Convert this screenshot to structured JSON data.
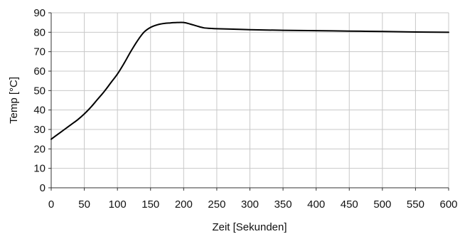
{
  "chart_data": {
    "type": "line",
    "title": "",
    "xlabel": "Zeit [Sekunden]",
    "ylabel": "Temp [°C]",
    "xlim": [
      0,
      600
    ],
    "ylim": [
      0,
      90
    ],
    "x_ticks": [
      "0",
      "50",
      "100",
      "150",
      "200",
      "250",
      "300",
      "350",
      "400",
      "450",
      "500",
      "550",
      "600"
    ],
    "y_ticks": [
      "0",
      "10",
      "20",
      "30",
      "40",
      "50",
      "60",
      "70",
      "80",
      "90"
    ],
    "grid": true,
    "legend": "none",
    "colors": {
      "line": "#000000",
      "grid": "#c8c8c8",
      "axis": "#333333"
    },
    "series": [
      {
        "x": [
          0,
          10,
          20,
          30,
          40,
          50,
          60,
          70,
          80,
          90,
          100,
          110,
          120,
          130,
          140,
          150,
          160,
          170,
          180,
          190,
          200,
          210,
          220,
          230,
          240,
          250,
          275,
          300,
          350,
          400,
          450,
          500,
          550,
          600
        ],
        "y": [
          25,
          27.5,
          30,
          32.5,
          35,
          38,
          41.5,
          45.5,
          49.5,
          54,
          58.5,
          64,
          70,
          75.5,
          80,
          82.5,
          83.8,
          84.5,
          84.8,
          85,
          85,
          84.2,
          83.2,
          82.3,
          82,
          81.8,
          81.6,
          81.3,
          81,
          80.8,
          80.6,
          80.4,
          80.1,
          80
        ]
      }
    ]
  }
}
